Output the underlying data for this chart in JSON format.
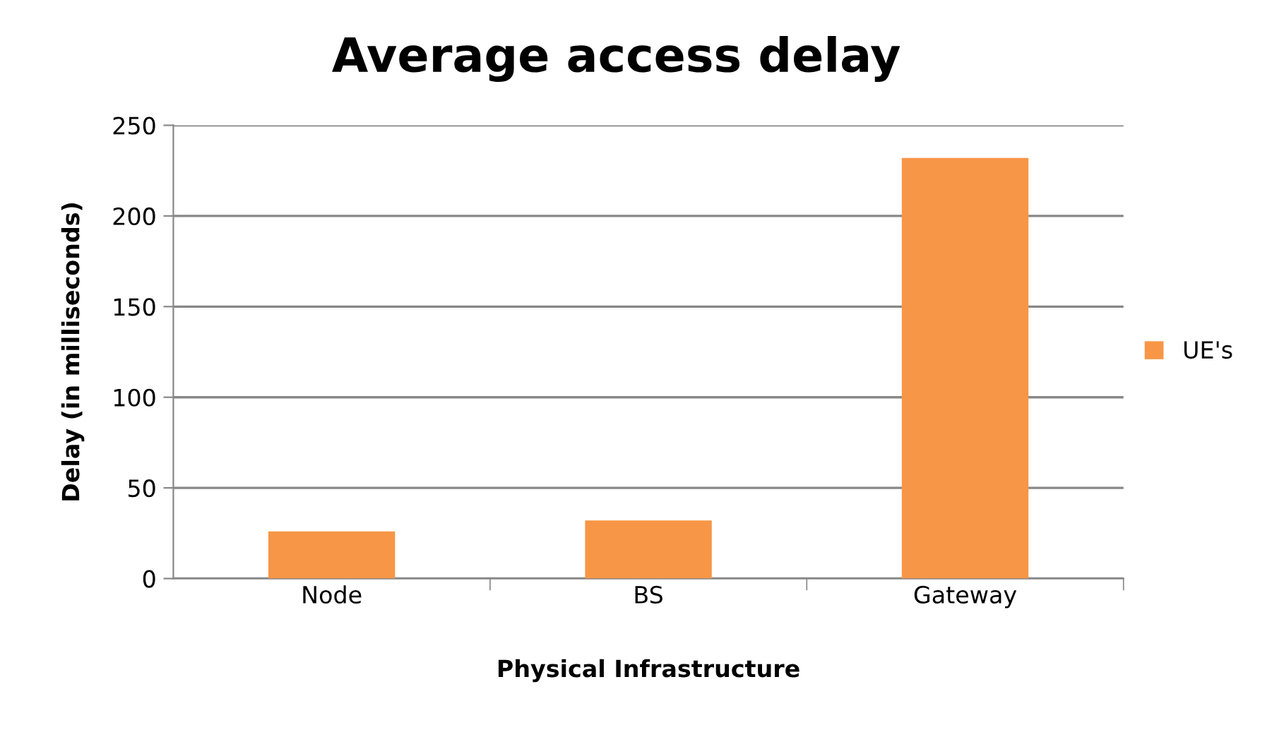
{
  "chart_data": {
    "type": "bar",
    "title": "Average access delay",
    "xlabel": "Physical Infrastructure",
    "ylabel": "Delay (in milliseconds)",
    "categories": [
      "Node",
      "BS",
      "Gateway"
    ],
    "series": [
      {
        "name": "UE's",
        "color": "#f79646",
        "values": [
          26,
          32,
          232
        ]
      }
    ],
    "ylim": [
      0,
      250
    ],
    "yticks": [
      0,
      50,
      100,
      150,
      200,
      250
    ],
    "grid": "y",
    "legend": "right"
  }
}
